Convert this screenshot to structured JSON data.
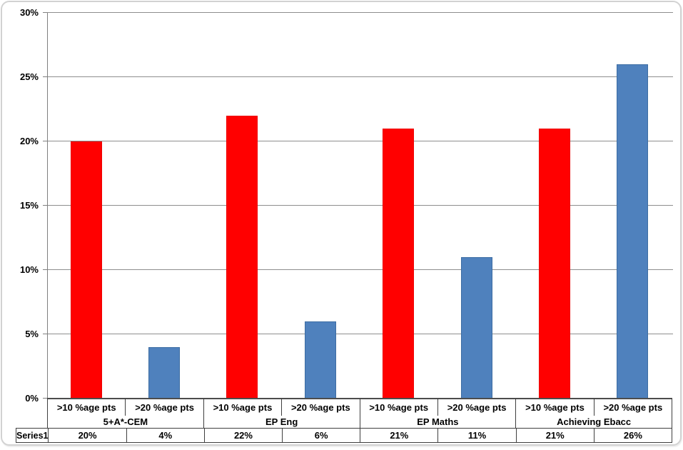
{
  "window": {
    "background": "#ffffff",
    "frame_border_color": "#d2d2d2"
  },
  "chart_data": {
    "type": "bar",
    "title": "",
    "xlabel": "",
    "ylabel": "",
    "ylim": [
      0,
      30
    ],
    "ytick_step": 5,
    "ytick_labels": [
      "0%",
      "5%",
      "10%",
      "15%",
      "20%",
      "25%",
      "30%"
    ],
    "grid": true,
    "legend_position": "none",
    "data_table_shown": true,
    "group_labels": [
      "5+A*-CEM",
      "EP Eng",
      "EP Maths",
      "Achieving Ebacc"
    ],
    "categories": [
      ">10 %age pts",
      ">20 %age pts",
      ">10 %age pts",
      ">20 %age pts",
      ">10 %age pts",
      ">20 %age pts",
      ">10 %age pts",
      ">20 %age pts"
    ],
    "series": [
      {
        "name": "Series1",
        "values": [
          20,
          4,
          22,
          6,
          21,
          11,
          21,
          26
        ],
        "display_values": [
          "20%",
          "4%",
          "22%",
          "6%",
          "21%",
          "11%",
          "21%",
          "26%"
        ]
      }
    ],
    "bar_styles": [
      {
        "applies_to": ">10 %age pts",
        "fill": "#ff0000",
        "border": "#ee0000"
      },
      {
        "applies_to": ">20 %age pts",
        "fill": "#4f81bd",
        "border": "#3d6da3"
      }
    ],
    "axis_color": "#4d4d4d",
    "y_axis_color": "#7f7f7f",
    "gridline_color": "#8e8e8e",
    "table_border_color": "#3f3f3f",
    "text_color": "#000000"
  }
}
